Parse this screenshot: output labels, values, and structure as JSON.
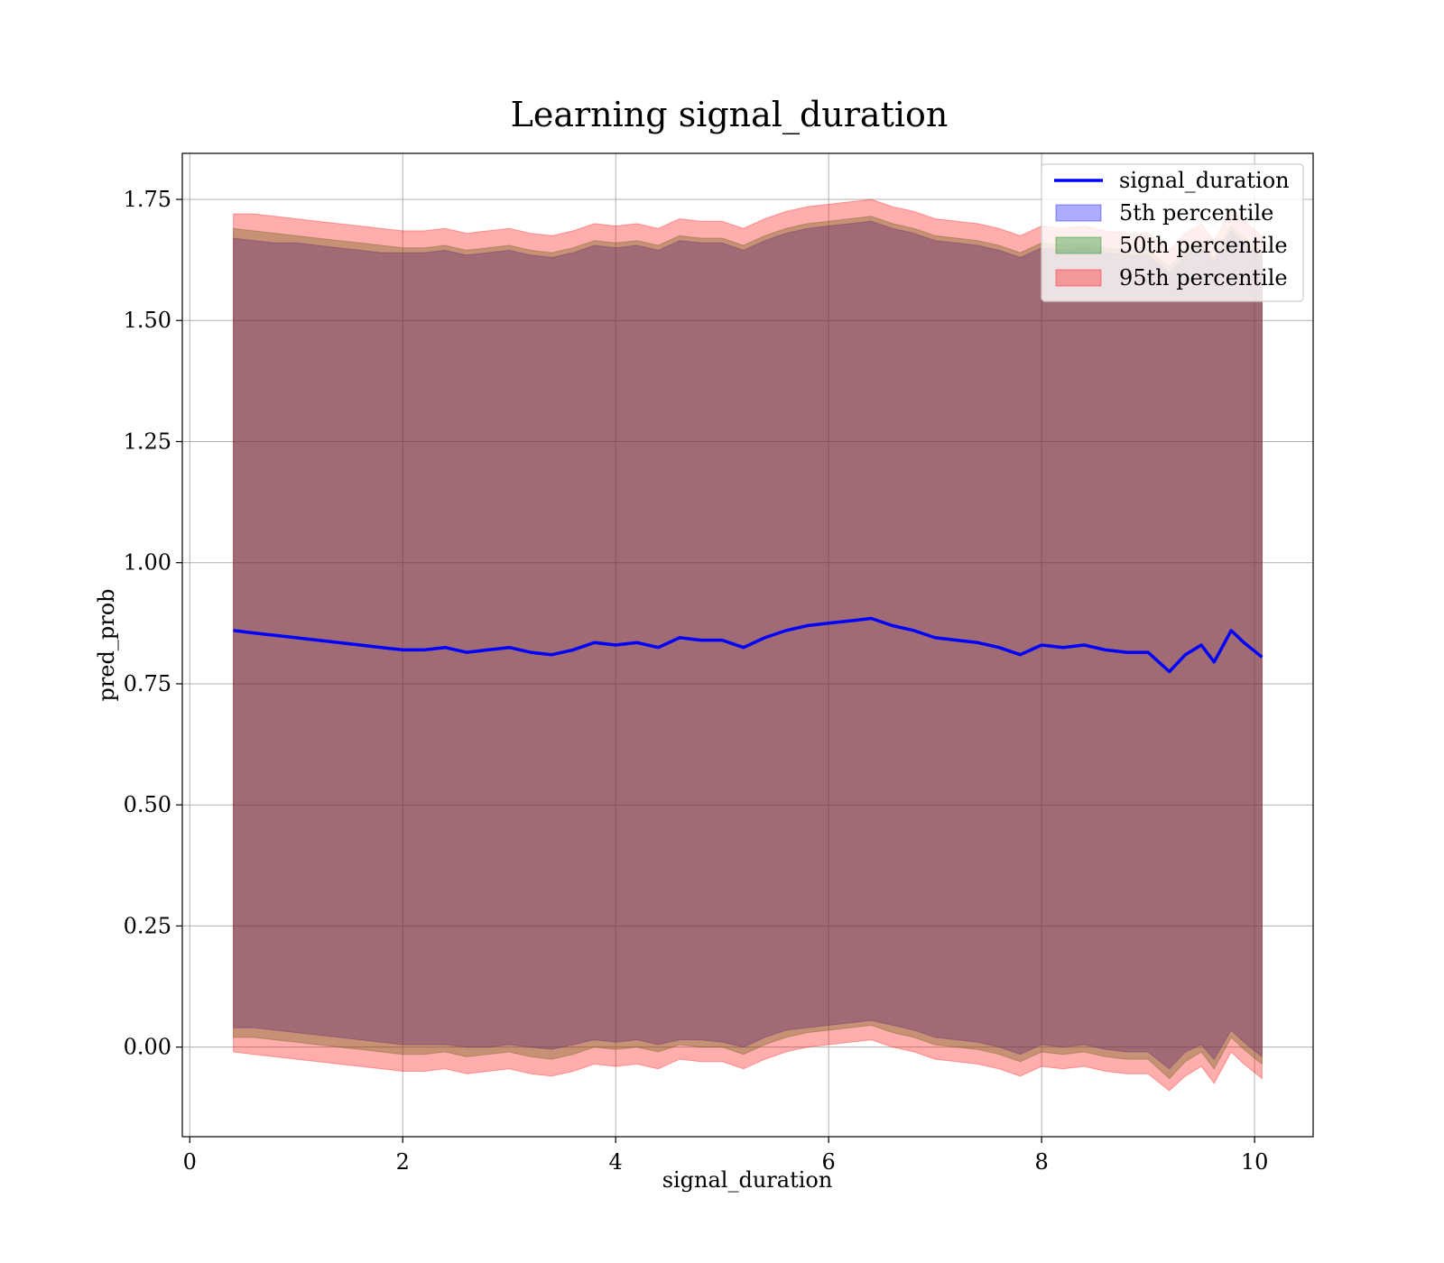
{
  "chart_data": {
    "type": "line",
    "title": "Learning signal_duration",
    "xlabel": "signal_duration",
    "ylabel": "pred_prob",
    "xlim": [
      -0.07,
      10.55
    ],
    "ylim": [
      -0.185,
      1.845
    ],
    "xticks": [
      0,
      2,
      4,
      6,
      8,
      10
    ],
    "xtick_labels": [
      "0",
      "2",
      "4",
      "6",
      "8",
      "10"
    ],
    "yticks": [
      0.0,
      0.25,
      0.5,
      0.75,
      1.0,
      1.25,
      1.5,
      1.75
    ],
    "ytick_labels": [
      "0.00",
      "0.25",
      "0.50",
      "0.75",
      "1.00",
      "1.25",
      "1.50",
      "1.75"
    ],
    "grid": true,
    "legend_position": "top-right",
    "x": [
      0.41,
      0.6,
      0.8,
      1.0,
      1.2,
      1.4,
      1.6,
      1.8,
      2.0,
      2.2,
      2.4,
      2.6,
      2.8,
      3.0,
      3.2,
      3.4,
      3.6,
      3.8,
      4.0,
      4.2,
      4.4,
      4.6,
      4.8,
      5.0,
      5.2,
      5.4,
      5.6,
      5.8,
      6.0,
      6.2,
      6.4,
      6.6,
      6.8,
      7.0,
      7.2,
      7.4,
      7.6,
      7.8,
      8.0,
      8.2,
      8.4,
      8.6,
      8.8,
      9.0,
      9.2,
      9.35,
      9.5,
      9.62,
      9.78,
      9.9,
      10.07
    ],
    "series": [
      {
        "name": "signal_duration",
        "type": "line",
        "color": "#0000ff",
        "values": [
          0.86,
          0.855,
          0.85,
          0.845,
          0.84,
          0.835,
          0.83,
          0.825,
          0.82,
          0.82,
          0.825,
          0.815,
          0.82,
          0.825,
          0.815,
          0.81,
          0.82,
          0.835,
          0.83,
          0.835,
          0.825,
          0.845,
          0.84,
          0.84,
          0.825,
          0.845,
          0.86,
          0.87,
          0.875,
          0.88,
          0.885,
          0.87,
          0.86,
          0.845,
          0.84,
          0.835,
          0.825,
          0.81,
          0.83,
          0.825,
          0.83,
          0.82,
          0.815,
          0.815,
          0.775,
          0.81,
          0.83,
          0.795,
          0.86,
          0.835,
          0.805
        ]
      },
      {
        "name": "5th percentile",
        "type": "band",
        "color": "#0000ff",
        "lower": [
          0.04,
          0.04,
          0.035,
          0.03,
          0.025,
          0.02,
          0.015,
          0.01,
          0.005,
          0.005,
          0.005,
          0.0,
          0.0,
          0.005,
          0.0,
          -0.005,
          0.005,
          0.015,
          0.01,
          0.015,
          0.005,
          0.015,
          0.015,
          0.01,
          0.0,
          0.02,
          0.035,
          0.04,
          0.045,
          0.05,
          0.055,
          0.045,
          0.035,
          0.02,
          0.015,
          0.01,
          0.0,
          -0.015,
          0.005,
          0.0,
          0.005,
          -0.005,
          -0.01,
          -0.01,
          -0.045,
          -0.01,
          0.005,
          -0.025,
          0.035,
          0.01,
          -0.02
        ],
        "upper": [
          1.67,
          1.665,
          1.66,
          1.66,
          1.655,
          1.65,
          1.645,
          1.64,
          1.64,
          1.64,
          1.645,
          1.635,
          1.64,
          1.645,
          1.635,
          1.63,
          1.64,
          1.655,
          1.65,
          1.655,
          1.645,
          1.665,
          1.66,
          1.66,
          1.645,
          1.665,
          1.68,
          1.69,
          1.695,
          1.7,
          1.705,
          1.69,
          1.68,
          1.665,
          1.66,
          1.655,
          1.645,
          1.63,
          1.65,
          1.645,
          1.65,
          1.64,
          1.635,
          1.635,
          1.6,
          1.635,
          1.655,
          1.62,
          1.685,
          1.66,
          1.63
        ]
      },
      {
        "name": "50th percentile",
        "type": "band",
        "color": "#008000",
        "lower": [
          0.02,
          0.02,
          0.015,
          0.01,
          0.005,
          0.0,
          -0.005,
          -0.01,
          -0.015,
          -0.015,
          -0.01,
          -0.02,
          -0.015,
          -0.01,
          -0.02,
          -0.025,
          -0.015,
          0.0,
          -0.005,
          0.0,
          -0.01,
          0.005,
          0.0,
          0.0,
          -0.015,
          0.005,
          0.02,
          0.03,
          0.035,
          0.04,
          0.045,
          0.03,
          0.02,
          0.005,
          0.0,
          -0.005,
          -0.015,
          -0.03,
          -0.01,
          -0.015,
          -0.01,
          -0.02,
          -0.025,
          -0.025,
          -0.065,
          -0.03,
          -0.01,
          -0.045,
          0.02,
          -0.005,
          -0.035
        ],
        "upper": [
          1.69,
          1.685,
          1.68,
          1.675,
          1.67,
          1.665,
          1.66,
          1.655,
          1.65,
          1.65,
          1.655,
          1.645,
          1.65,
          1.655,
          1.645,
          1.64,
          1.65,
          1.665,
          1.66,
          1.665,
          1.655,
          1.675,
          1.67,
          1.67,
          1.655,
          1.675,
          1.69,
          1.7,
          1.705,
          1.71,
          1.715,
          1.7,
          1.69,
          1.675,
          1.67,
          1.665,
          1.655,
          1.64,
          1.66,
          1.655,
          1.66,
          1.65,
          1.645,
          1.645,
          1.61,
          1.645,
          1.665,
          1.63,
          1.695,
          1.67,
          1.64
        ]
      },
      {
        "name": "95th percentile",
        "type": "band",
        "color": "#ff0000",
        "lower": [
          -0.01,
          -0.015,
          -0.02,
          -0.025,
          -0.03,
          -0.035,
          -0.04,
          -0.045,
          -0.05,
          -0.05,
          -0.045,
          -0.055,
          -0.05,
          -0.045,
          -0.055,
          -0.06,
          -0.05,
          -0.035,
          -0.04,
          -0.035,
          -0.045,
          -0.025,
          -0.03,
          -0.03,
          -0.045,
          -0.025,
          -0.01,
          0.0,
          0.005,
          0.01,
          0.015,
          0.0,
          -0.01,
          -0.025,
          -0.03,
          -0.035,
          -0.045,
          -0.06,
          -0.04,
          -0.045,
          -0.04,
          -0.05,
          -0.055,
          -0.055,
          -0.09,
          -0.06,
          -0.04,
          -0.075,
          -0.01,
          -0.035,
          -0.065
        ],
        "upper": [
          1.72,
          1.72,
          1.715,
          1.71,
          1.705,
          1.7,
          1.695,
          1.69,
          1.685,
          1.685,
          1.69,
          1.68,
          1.685,
          1.69,
          1.68,
          1.675,
          1.685,
          1.7,
          1.695,
          1.7,
          1.69,
          1.71,
          1.705,
          1.705,
          1.69,
          1.71,
          1.725,
          1.735,
          1.74,
          1.745,
          1.75,
          1.735,
          1.725,
          1.71,
          1.705,
          1.7,
          1.69,
          1.675,
          1.695,
          1.69,
          1.695,
          1.685,
          1.68,
          1.68,
          1.645,
          1.68,
          1.7,
          1.665,
          1.73,
          1.705,
          1.675
        ]
      }
    ],
    "legend": [
      {
        "label": "signal_duration",
        "kind": "line",
        "color": "#0000ff"
      },
      {
        "label": "5th percentile",
        "kind": "patch",
        "color": "#0000ff"
      },
      {
        "label": "50th percentile",
        "kind": "patch",
        "color": "#008000"
      },
      {
        "label": "95th percentile",
        "kind": "patch",
        "color": "#ff0000"
      }
    ]
  }
}
